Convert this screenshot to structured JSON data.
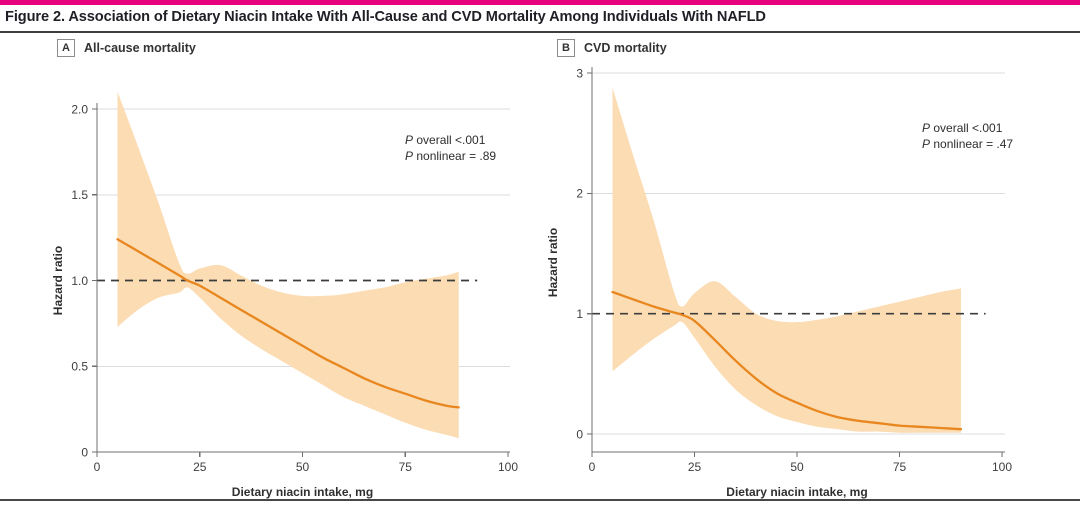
{
  "header": {
    "title": "Figure 2. Association of Dietary Niacin Intake With All-Cause and CVD Mortality Among Individuals With NAFLD",
    "accent_color": "#E6007E"
  },
  "panels": [
    {
      "letter": "A",
      "label": "All-cause mortality"
    },
    {
      "letter": "B",
      "label": "CVD mortality"
    }
  ],
  "colors": {
    "line": "#E8871F",
    "band": "#FBDCB3",
    "reference": "#3C3C3C",
    "grid": "#DCDCDC",
    "axis": "#6F6F6F",
    "tick_text": "#3F3F3F",
    "label_text": "#2F2F2F"
  },
  "chart_data": [
    {
      "type": "line",
      "panel": "A",
      "title": "All-cause mortality",
      "xlabel": "Dietary niacin intake, mg",
      "ylabel": "Hazard ratio",
      "xlim": [
        0,
        100
      ],
      "xticks": [
        0,
        25,
        50,
        75,
        100
      ],
      "xtick_labels": [
        "0",
        "25",
        "50",
        "75",
        "100"
      ],
      "ylim": [
        0,
        2.1
      ],
      "yticks": [
        0,
        0.5,
        1,
        1.5,
        2
      ],
      "ytick_labels": [
        "0",
        "0.5",
        "1.0",
        "1.5",
        "2.0"
      ],
      "grid_at": [
        0.5,
        1.5,
        2
      ],
      "reference_line_y": 1,
      "reference_line_x_end": 92.5,
      "legend": "none",
      "stats": {
        "p": "P",
        "overall": "overall <.001",
        "nonlinear": "nonlinear = .89"
      },
      "x": [
        5,
        10,
        15,
        20,
        22,
        25,
        30,
        35,
        40,
        45,
        50,
        55,
        60,
        65,
        70,
        75,
        80,
        85,
        88
      ],
      "hazard_ratio": [
        1.24,
        1.17,
        1.1,
        1.03,
        1.0,
        0.97,
        0.9,
        0.83,
        0.76,
        0.69,
        0.62,
        0.55,
        0.49,
        0.43,
        0.38,
        0.34,
        0.3,
        0.27,
        0.26
      ],
      "ci_lower": [
        0.73,
        0.83,
        0.9,
        0.93,
        0.96,
        0.9,
        0.78,
        0.68,
        0.6,
        0.53,
        0.46,
        0.39,
        0.32,
        0.27,
        0.22,
        0.17,
        0.13,
        0.1,
        0.08
      ],
      "ci_upper": [
        2.1,
        1.78,
        1.45,
        1.1,
        1.04,
        1.07,
        1.09,
        1.03,
        0.97,
        0.93,
        0.91,
        0.91,
        0.92,
        0.94,
        0.96,
        0.99,
        1.01,
        1.03,
        1.05
      ]
    },
    {
      "type": "line",
      "panel": "B",
      "title": "CVD mortality",
      "xlabel": "Dietary niacin intake, mg",
      "ylabel": "Hazard ratio",
      "xlim": [
        0,
        100
      ],
      "xticks": [
        0,
        25,
        50,
        75,
        100
      ],
      "xtick_labels": [
        "0",
        "25",
        "50",
        "75",
        "100"
      ],
      "ylim": [
        0,
        3
      ],
      "yticks": [
        0,
        1,
        2,
        3
      ],
      "ytick_labels": [
        "0",
        "1",
        "2",
        "3"
      ],
      "grid_at": [
        0,
        2,
        3
      ],
      "reference_line_y": 1,
      "reference_line_x_end": 96,
      "legend": "none",
      "stats": {
        "p": "P",
        "overall": "overall <.001",
        "nonlinear": "nonlinear = .47"
      },
      "x": [
        5,
        10,
        15,
        20,
        22,
        25,
        30,
        35,
        40,
        45,
        50,
        55,
        60,
        65,
        70,
        75,
        80,
        85,
        90
      ],
      "hazard_ratio": [
        1.18,
        1.12,
        1.06,
        1.01,
        0.99,
        0.94,
        0.78,
        0.61,
        0.46,
        0.34,
        0.26,
        0.19,
        0.14,
        0.11,
        0.09,
        0.07,
        0.06,
        0.05,
        0.04
      ],
      "ci_lower": [
        0.52,
        0.66,
        0.79,
        0.9,
        0.93,
        0.8,
        0.56,
        0.37,
        0.24,
        0.15,
        0.1,
        0.06,
        0.04,
        0.02,
        0.02,
        0.01,
        0.01,
        0.01,
        0.01
      ],
      "ci_upper": [
        2.88,
        2.32,
        1.78,
        1.18,
        1.06,
        1.17,
        1.27,
        1.14,
        1.0,
        0.94,
        0.93,
        0.95,
        0.98,
        1.02,
        1.06,
        1.1,
        1.14,
        1.18,
        1.21
      ]
    }
  ]
}
